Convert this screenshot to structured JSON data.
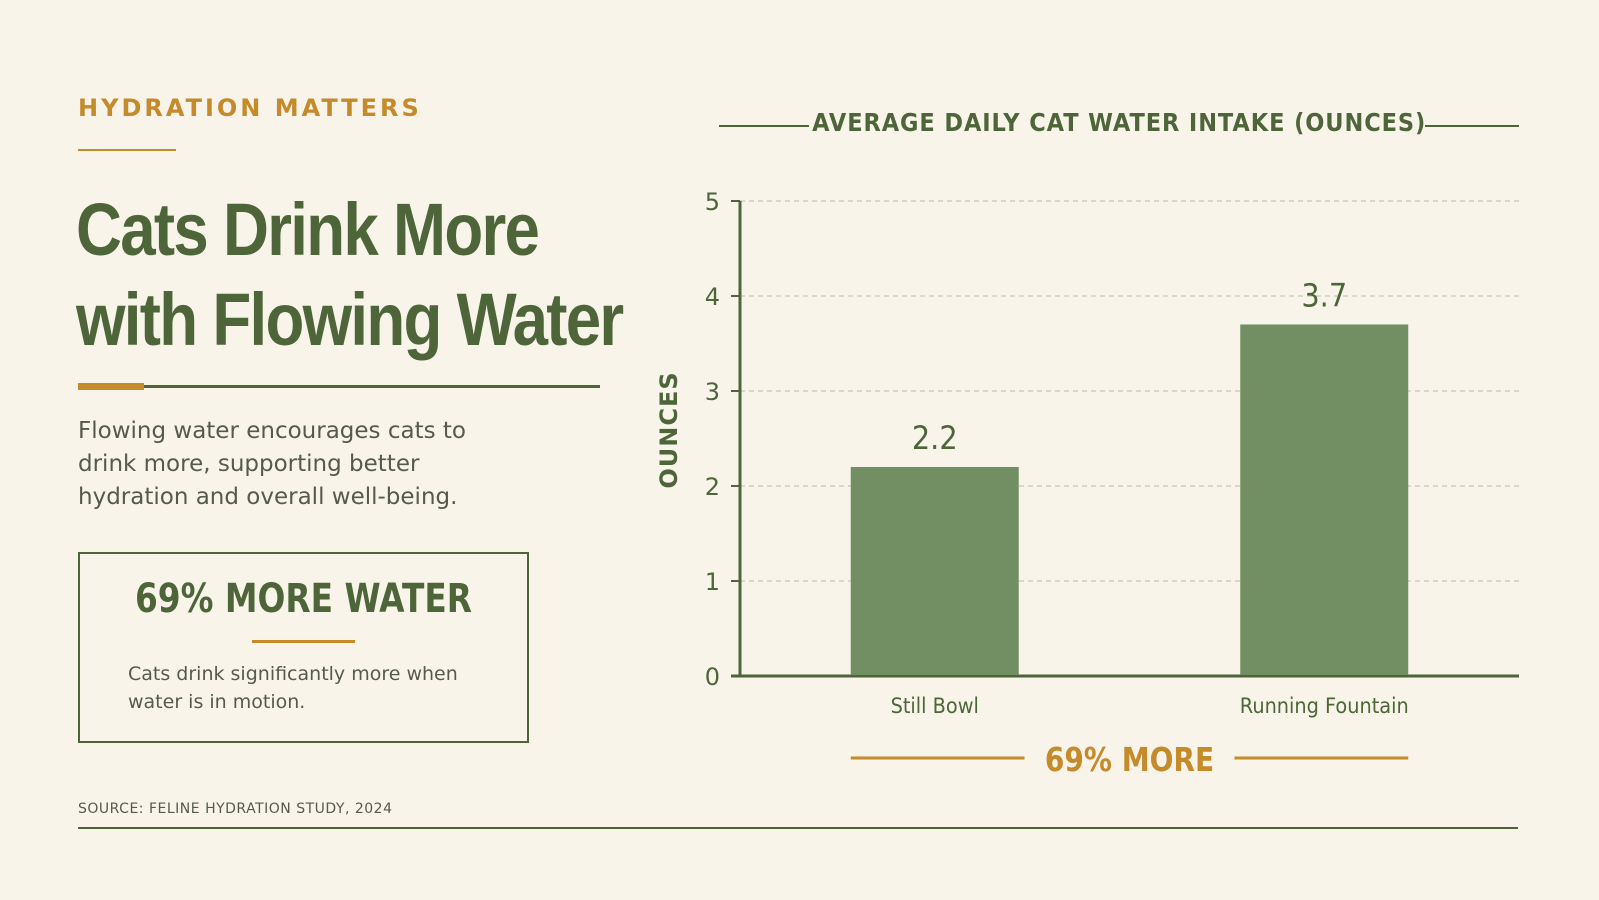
{
  "eyebrow": "HYDRATION MATTERS",
  "headline": {
    "line1": "Cats Drink More",
    "line2": "with Flowing Water"
  },
  "intro": "Flowing water encourages cats to drink more, supporting better hydration and overall well-being.",
  "callout": {
    "title": "69% MORE WATER",
    "text": "Cats drink significantly more when water is in motion."
  },
  "source": "SOURCE: FELINE HYDRATION STUDY, 2024",
  "colors": {
    "background": "#f8f4ea",
    "primary_green": "#4d6539",
    "bar_green": "#728e63",
    "accent_orange": "#c58a2a"
  },
  "chart_data": {
    "type": "bar",
    "title": "AVERAGE DAILY CAT WATER INTAKE (OUNCES)",
    "ylabel": "OUNCES",
    "xlabel": "",
    "categories": [
      "Still Bowl",
      "Running Fountain"
    ],
    "values": [
      2.2,
      3.7
    ],
    "data_labels": [
      "2.2",
      "3.7"
    ],
    "ylim": [
      0,
      5
    ],
    "yticks": [
      "0",
      "1",
      "2",
      "3",
      "4",
      "5"
    ],
    "grid": true,
    "annotation": "69% MORE"
  }
}
